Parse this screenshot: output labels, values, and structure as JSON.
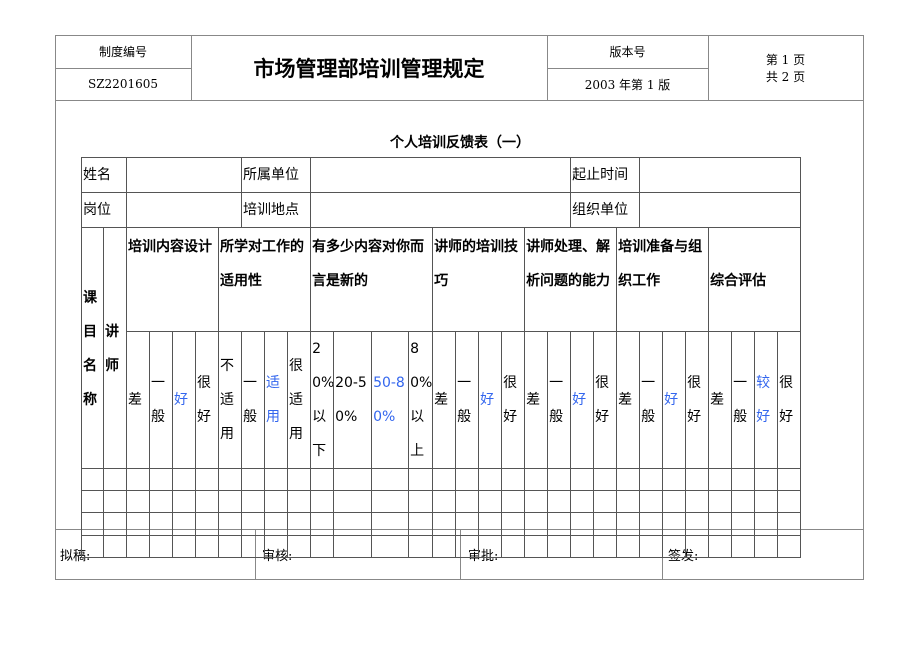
{
  "header": {
    "doc_no_label": "制度编号",
    "doc_no": "SZ2201605",
    "title": "市场管理部培训管理规定",
    "version_label": "版本号",
    "version": "2003 年第 1 版",
    "page_current": "第 1 页",
    "page_total": "共 2 页"
  },
  "form": {
    "title": "个人培训反馈表（一）",
    "row1": [
      "姓名",
      "所属单位",
      "起止时间"
    ],
    "row2": [
      "岗位",
      "培训地点",
      "组织单位"
    ],
    "course_label": "课目名称",
    "trainer_label": "讲师",
    "groups": [
      "培训内容设计",
      "所学对工作的适用性",
      "有多少内容对你而言是新的",
      "讲师的培训技巧",
      "讲师处理、解析问题的能力",
      "培训准备与组织工作",
      "综合评估"
    ],
    "ratings": {
      "g1": [
        "差",
        "一般",
        "好",
        "很好"
      ],
      "g2": [
        "不适用",
        "一般",
        "适用",
        "很适用"
      ],
      "g3": [
        "20%以下",
        "20-50%",
        "50-80%",
        "80%以上"
      ],
      "g4": [
        "差",
        "一般",
        "好",
        "很好"
      ],
      "g5": [
        "差",
        "一般",
        "好",
        "很好"
      ],
      "g6": [
        "差",
        "一般",
        "好",
        "很好"
      ],
      "g7": [
        "差",
        "一般",
        "较好",
        "很好"
      ]
    },
    "highlight_color": "#3366ee"
  },
  "footer": {
    "draft": "拟稿:",
    "review": "审核:",
    "approve": "审批:",
    "issue": "签发:"
  }
}
